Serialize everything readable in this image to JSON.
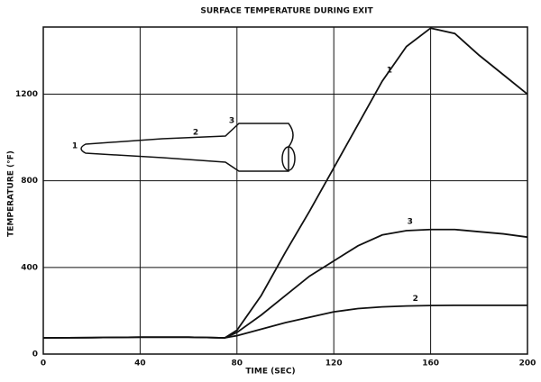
{
  "chart_data": {
    "type": "line",
    "title": "SURFACE TEMPERATURE DURING EXIT",
    "x_label": "TIME (SEC)",
    "y_label": "TEMPERATURE (°F)",
    "x": [
      0,
      20,
      40,
      60,
      75,
      80,
      90,
      100,
      110,
      120,
      130,
      140,
      150,
      160,
      170,
      180,
      190,
      200
    ],
    "series": [
      {
        "name": "1",
        "color": "#111111",
        "values": [
          75,
          76,
          78,
          78,
          75,
          110,
          270,
          470,
          660,
          860,
          1060,
          1260,
          1420,
          1505,
          1480,
          1380,
          1290,
          1200
        ]
      },
      {
        "name": "2",
        "color": "#111111",
        "values": [
          75,
          76,
          78,
          78,
          75,
          85,
          115,
          145,
          170,
          195,
          210,
          218,
          222,
          224,
          225,
          225,
          225,
          225
        ]
      },
      {
        "name": "3",
        "color": "#111111",
        "values": [
          75,
          76,
          78,
          78,
          75,
          100,
          180,
          270,
          360,
          430,
          500,
          550,
          570,
          575,
          575,
          565,
          555,
          540
        ]
      }
    ],
    "diagram_labels": [
      "1",
      "2",
      "3"
    ],
    "xlim": [
      0,
      200
    ],
    "xticks": [
      0,
      40,
      80,
      120,
      160,
      200
    ],
    "ylim": [
      0,
      1510
    ],
    "yticks": [
      0,
      400,
      800,
      1200
    ],
    "grid": true
  }
}
